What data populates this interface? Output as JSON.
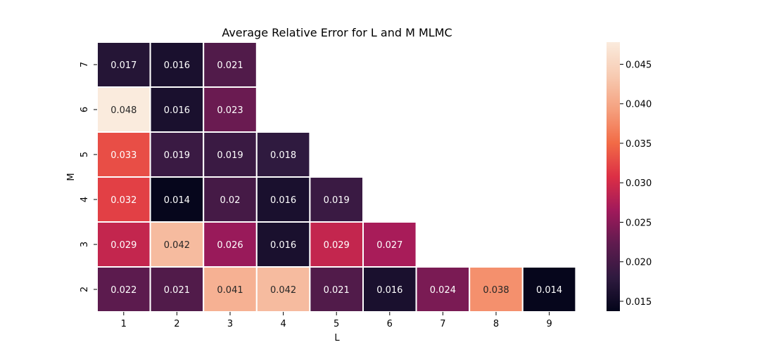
{
  "chart_data": {
    "type": "heatmap",
    "title": "Average Relative Error for L and M MLMC",
    "xlabel": "L",
    "ylabel": "M",
    "x_categories": [
      "1",
      "2",
      "3",
      "4",
      "5",
      "6",
      "7",
      "8",
      "9"
    ],
    "y_categories": [
      "7",
      "6",
      "5",
      "4",
      "3",
      "2"
    ],
    "rows": [
      {
        "M": "7",
        "values": [
          0.017,
          0.016,
          0.021,
          null,
          null,
          null,
          null,
          null,
          null
        ]
      },
      {
        "M": "6",
        "values": [
          0.048,
          0.016,
          0.023,
          null,
          null,
          null,
          null,
          null,
          null
        ]
      },
      {
        "M": "5",
        "values": [
          0.033,
          0.019,
          0.019,
          0.018,
          null,
          null,
          null,
          null,
          null
        ]
      },
      {
        "M": "4",
        "values": [
          0.032,
          0.014,
          0.02,
          0.016,
          0.019,
          null,
          null,
          null,
          null
        ]
      },
      {
        "M": "3",
        "values": [
          0.029,
          0.042,
          0.026,
          0.016,
          0.029,
          0.027,
          null,
          null,
          null
        ]
      },
      {
        "M": "2",
        "values": [
          0.022,
          0.021,
          0.041,
          0.042,
          0.021,
          0.016,
          0.024,
          0.038,
          0.014
        ]
      }
    ],
    "colorbar": {
      "vmin": 0.01375,
      "vmax": 0.0478,
      "ticks": [
        0.015,
        0.02,
        0.025,
        0.03,
        0.035,
        0.04,
        0.045
      ],
      "tick_labels": [
        "0.015",
        "0.020",
        "0.025",
        "0.030",
        "0.035",
        "0.040",
        "0.045"
      ],
      "colormap": "rocket",
      "colormap_stops": [
        "#03051a",
        "#2f1a3f",
        "#5f1b4f",
        "#a11a5b",
        "#dc2f45",
        "#f26b46",
        "#f5a07e",
        "#f7cbb2",
        "#faebdd"
      ]
    },
    "cell_border_color": "#ffffff",
    "grid": false
  }
}
